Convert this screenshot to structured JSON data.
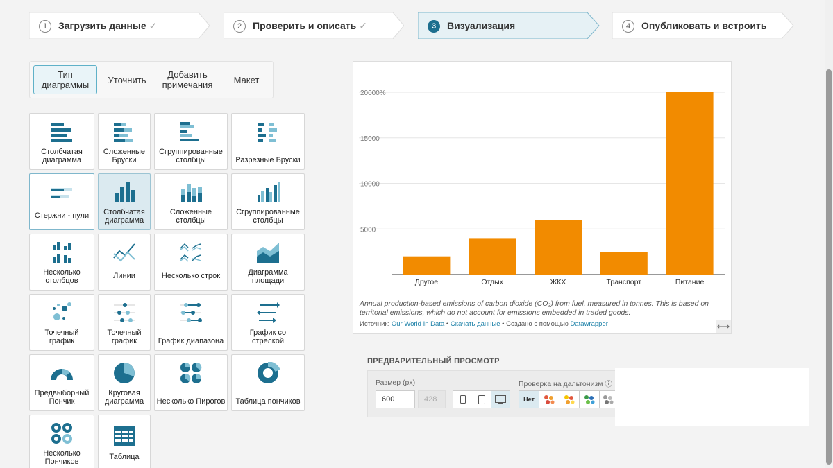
{
  "steps": [
    {
      "num": "1",
      "label": "Загрузить данные",
      "check": "✓"
    },
    {
      "num": "2",
      "label": "Проверить и описать",
      "check": "✓"
    },
    {
      "num": "3",
      "label": "Визуализация",
      "check": ""
    },
    {
      "num": "4",
      "label": "Опубликовать и встроить",
      "check": ""
    }
  ],
  "tabs": [
    "Тип диаграммы",
    "Уточнить",
    "Добавить примечания",
    "Макет"
  ],
  "chart_types": [
    "Столбчатая диаграмма",
    "Сложенные Бруски",
    "Сгруппированные столбцы",
    "Разрезные Бруски",
    "Стержни - пули",
    "Столбчатая диаграмма",
    "Сложенные столбцы",
    "Сгруппированные столбцы",
    "Несколько столбцов",
    "Линии",
    "Несколько строк",
    "Диаграмма площади",
    "Точечный график",
    "Точечный график",
    "График диапазона",
    "График со стрелкой",
    "Предвыборный Пончик",
    "Круговая диаграмма",
    "Несколько Пирогов",
    "Таблица пончиков",
    "Несколько Пончиков",
    "Таблица"
  ],
  "chart_data": {
    "type": "bar",
    "categories": [
      "Другое",
      "Отдых",
      "ЖКХ",
      "Транспорт",
      "Питание"
    ],
    "values": [
      2000,
      4000,
      6000,
      2500,
      20000
    ],
    "ylim": [
      0,
      20000
    ],
    "yticks": [
      "5000",
      "10000",
      "15000",
      "20000%"
    ],
    "ytick_values": [
      5000,
      10000,
      15000,
      20000
    ],
    "bar_color": "#f28b00",
    "grid": true
  },
  "chart_text": {
    "caption": "Annual production-based emissions of carbon dioxide (CO₂) from fuel, measured in tonnes. This is based on territorial emissions, which do not account for emissions embedded in traded goods.",
    "source_prefix": "Источник: ",
    "source_name": "Our World In Data",
    "sep1": " • ",
    "download": "Скачать данные",
    "sep2": " • Создано с помощью ",
    "made_with": "Datawrapper"
  },
  "preview": {
    "title": "ПРЕДВАРИТЕЛЬНЫЙ ПРОСМОТР",
    "size_label": "Размер (px)",
    "width": "600",
    "height": "428",
    "colorblind_label": "Проверка на дальтонизм",
    "colorblind_none": "Нет"
  },
  "colors": {
    "accent": "#1d6f8f",
    "tile_icon": "#1d6f8f",
    "tile_icon_light": "#7fbfd4"
  }
}
